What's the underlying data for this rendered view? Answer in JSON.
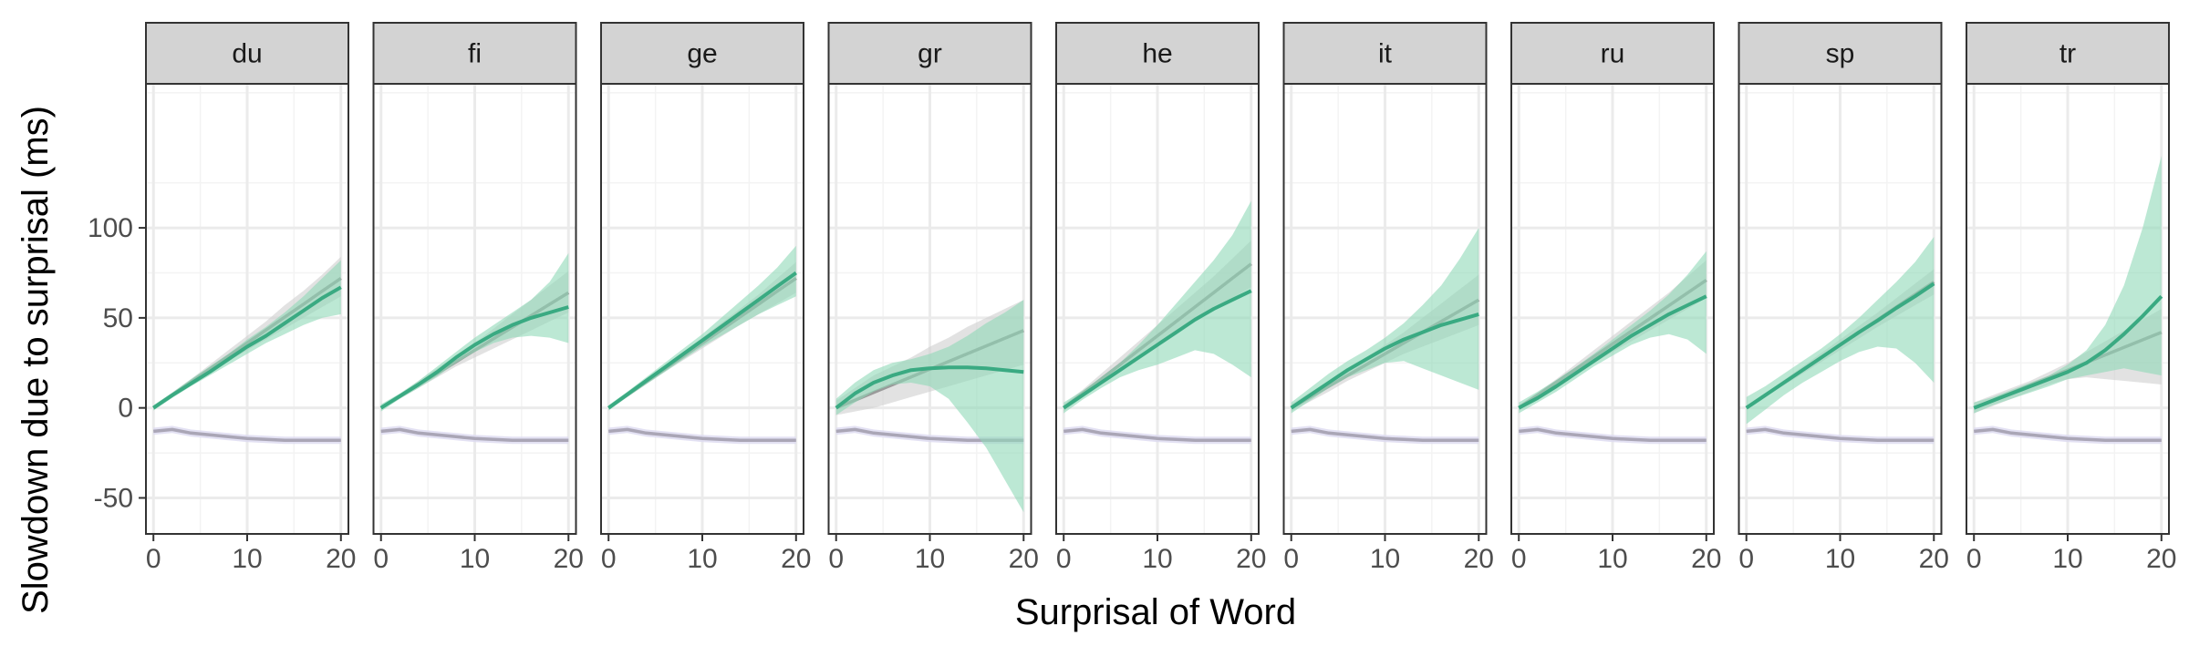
{
  "chart_data": {
    "type": "line",
    "xlabel": "Surprisal of Word",
    "ylabel": "Slowdown due to surprisal (ms)",
    "xlim": [
      -0.8,
      20.8
    ],
    "ylim": [
      -70,
      180
    ],
    "x_ticks": [
      0,
      10,
      20
    ],
    "y_ticks": [
      -50,
      0,
      50,
      100
    ],
    "y_tick_labels": [
      "-50",
      "0",
      "50",
      "100"
    ],
    "grid": true,
    "legend": "none",
    "colors": {
      "green_line": "#3aaa82",
      "green_band": "#8fd9b8",
      "gray_line": "#9a9a9a",
      "gray_band": "#cfcfcf",
      "baseline_line": "#aaa6b6",
      "baseline_band": "#dcdaf0",
      "strip_bg": "#d3d3d3",
      "grid": "#ebebeb"
    },
    "x": [
      0,
      2,
      4,
      6,
      8,
      10,
      12,
      14,
      16,
      18,
      20
    ],
    "baseline": {
      "values": [
        -13,
        -12,
        -14,
        -15,
        -16,
        -17,
        -17.5,
        -18,
        -18,
        -18,
        -18
      ],
      "band": 2
    },
    "panels": [
      {
        "label": "du",
        "gray": [
          0,
          7.2,
          14.4,
          21.6,
          28.8,
          36,
          43.2,
          50.4,
          57.6,
          64.8,
          72
        ],
        "gray_band": [
          [
            -1,
            1
          ],
          [
            6,
            8.5
          ],
          [
            13,
            16
          ],
          [
            19.5,
            24
          ],
          [
            26,
            32
          ],
          [
            32,
            40
          ],
          [
            38,
            48
          ],
          [
            44,
            57
          ],
          [
            50,
            65
          ],
          [
            56,
            74
          ],
          [
            62,
            84
          ]
        ],
        "green": [
          0,
          7,
          13.5,
          20,
          27,
          34,
          40,
          47,
          54,
          61,
          67
        ],
        "green_band": [
          [
            -1.5,
            1.5
          ],
          [
            5.5,
            8.5
          ],
          [
            12,
            16
          ],
          [
            18,
            23
          ],
          [
            24,
            30
          ],
          [
            30,
            38
          ],
          [
            36,
            45
          ],
          [
            41,
            53
          ],
          [
            46,
            62
          ],
          [
            50,
            72
          ],
          [
            52,
            82
          ]
        ]
      },
      {
        "label": "fi",
        "gray": [
          0,
          6.4,
          12.8,
          19.2,
          25.6,
          32,
          38.4,
          44.8,
          51.2,
          57.6,
          64
        ],
        "gray_band": [
          [
            -1,
            1
          ],
          [
            5,
            7.5
          ],
          [
            11,
            15
          ],
          [
            17,
            22
          ],
          [
            23,
            29
          ],
          [
            28,
            36
          ],
          [
            33,
            44
          ],
          [
            38,
            52
          ],
          [
            43,
            60
          ],
          [
            48,
            68
          ],
          [
            53,
            76
          ]
        ],
        "green": [
          0,
          6.5,
          13,
          20,
          28,
          35,
          41,
          46,
          50,
          53,
          56
        ],
        "green_band": [
          [
            -2,
            2
          ],
          [
            5,
            8
          ],
          [
            11,
            15
          ],
          [
            17.5,
            23
          ],
          [
            25,
            31
          ],
          [
            31,
            39
          ],
          [
            36,
            46
          ],
          [
            39,
            53
          ],
          [
            40,
            60
          ],
          [
            39,
            70
          ],
          [
            36,
            86
          ]
        ]
      },
      {
        "label": "ge",
        "gray": [
          0,
          7.2,
          14.4,
          21.6,
          28.8,
          36,
          43.2,
          50.4,
          57.6,
          64.8,
          72
        ],
        "gray_band": [
          [
            -1,
            1
          ],
          [
            6,
            8.5
          ],
          [
            13,
            16
          ],
          [
            20,
            23.5
          ],
          [
            26.5,
            31
          ],
          [
            33,
            39
          ],
          [
            39.5,
            47
          ],
          [
            46,
            55
          ],
          [
            52,
            63
          ],
          [
            58,
            72
          ],
          [
            64,
            81
          ]
        ],
        "green": [
          0,
          7.5,
          15,
          22.5,
          30,
          37.5,
          45,
          52.5,
          60,
          67.5,
          75
        ],
        "green_band": [
          [
            -1.5,
            1.5
          ],
          [
            6,
            9
          ],
          [
            13,
            17
          ],
          [
            20,
            25
          ],
          [
            27,
            33
          ],
          [
            34,
            41
          ],
          [
            40,
            50
          ],
          [
            46,
            59
          ],
          [
            52,
            68
          ],
          [
            57,
            78
          ],
          [
            62,
            90
          ]
        ]
      },
      {
        "label": "gr",
        "gray": [
          0,
          4.3,
          8.6,
          12.9,
          17.2,
          21.5,
          25.8,
          30.1,
          34.4,
          38.7,
          43
        ],
        "gray_band": [
          [
            -4,
            4
          ],
          [
            -2,
            11
          ],
          [
            0,
            18
          ],
          [
            3,
            23
          ],
          [
            6,
            28
          ],
          [
            9,
            34
          ],
          [
            12,
            39
          ],
          [
            15,
            45
          ],
          [
            18,
            50
          ],
          [
            21,
            55
          ],
          [
            24,
            60
          ]
        ],
        "green": [
          0,
          8,
          14,
          18,
          21,
          22,
          22.5,
          22.5,
          22,
          21,
          20
        ],
        "green_band": [
          [
            -4,
            5
          ],
          [
            3,
            14
          ],
          [
            9,
            21
          ],
          [
            13,
            25
          ],
          [
            14,
            27
          ],
          [
            12,
            30
          ],
          [
            5,
            34
          ],
          [
            -8,
            40
          ],
          [
            -22,
            47
          ],
          [
            -40,
            53
          ],
          [
            -58,
            60
          ]
        ]
      },
      {
        "label": "he",
        "gray": [
          0,
          8,
          16,
          24,
          32,
          40,
          48,
          56,
          64,
          72,
          80
        ],
        "gray_band": [
          [
            -2,
            2
          ],
          [
            6,
            10
          ],
          [
            13,
            19
          ],
          [
            20,
            28
          ],
          [
            27,
            37
          ],
          [
            34,
            46
          ],
          [
            41,
            55
          ],
          [
            48,
            64
          ],
          [
            55,
            73
          ],
          [
            61,
            83
          ],
          [
            67,
            93
          ]
        ],
        "green": [
          0,
          7,
          14,
          21,
          28,
          35,
          42,
          49,
          55,
          60,
          65
        ],
        "green_band": [
          [
            -3,
            3
          ],
          [
            4.5,
            9.5
          ],
          [
            11,
            17
          ],
          [
            17,
            25
          ],
          [
            21,
            35
          ],
          [
            24,
            46
          ],
          [
            28,
            58
          ],
          [
            32,
            70
          ],
          [
            30,
            82
          ],
          [
            24,
            96
          ],
          [
            17,
            115
          ]
        ]
      },
      {
        "label": "it",
        "gray": [
          0,
          6,
          12,
          18,
          24,
          30,
          36,
          42,
          48,
          54,
          60
        ],
        "gray_band": [
          [
            -2,
            2
          ],
          [
            3.5,
            8.5
          ],
          [
            9,
            15
          ],
          [
            15,
            21
          ],
          [
            20,
            28
          ],
          [
            25,
            35
          ],
          [
            30,
            42
          ],
          [
            34,
            50
          ],
          [
            38,
            58
          ],
          [
            42,
            66
          ],
          [
            46,
            74
          ]
        ],
        "green": [
          0,
          7,
          14,
          21,
          27,
          33,
          38,
          42,
          46,
          49,
          52
        ],
        "green_band": [
          [
            -3,
            3
          ],
          [
            4,
            11
          ],
          [
            11,
            19
          ],
          [
            17,
            26
          ],
          [
            21,
            32
          ],
          [
            25,
            39
          ],
          [
            26,
            47
          ],
          [
            22,
            57
          ],
          [
            18,
            68
          ],
          [
            14,
            83
          ],
          [
            10,
            100
          ]
        ]
      },
      {
        "label": "ru",
        "gray": [
          0,
          7.1,
          14.2,
          21.3,
          28.4,
          35.5,
          42.6,
          49.7,
          56.8,
          63.9,
          71
        ],
        "gray_band": [
          [
            -1.5,
            1.5
          ],
          [
            5.5,
            8.5
          ],
          [
            12,
            16
          ],
          [
            18.5,
            24
          ],
          [
            25,
            32
          ],
          [
            31,
            40
          ],
          [
            37,
            48
          ],
          [
            43,
            56
          ],
          [
            49,
            64
          ],
          [
            55,
            73
          ],
          [
            61,
            82
          ]
        ],
        "green": [
          0,
          5.5,
          12,
          19,
          26,
          33,
          40,
          46,
          52,
          57,
          62
        ],
        "green_band": [
          [
            -3,
            3
          ],
          [
            3,
            9
          ],
          [
            9,
            15.5
          ],
          [
            16,
            22.5
          ],
          [
            23,
            30
          ],
          [
            29,
            38
          ],
          [
            35,
            46
          ],
          [
            39,
            54
          ],
          [
            41,
            63
          ],
          [
            38,
            74
          ],
          [
            30,
            87
          ]
        ]
      },
      {
        "label": "sp",
        "gray": [
          0,
          7,
          14,
          21,
          28,
          35,
          42,
          49,
          56,
          63,
          70
        ],
        "gray_band": [
          [
            -1,
            1
          ],
          [
            6,
            8
          ],
          [
            12.5,
            15.5
          ],
          [
            19,
            23
          ],
          [
            25.5,
            30.5
          ],
          [
            32,
            38
          ],
          [
            38.5,
            45.5
          ],
          [
            45,
            53
          ],
          [
            51,
            61
          ],
          [
            57,
            69
          ],
          [
            63,
            77
          ]
        ],
        "green": [
          0,
          7,
          14,
          21,
          28,
          35,
          42,
          48.5,
          55.5,
          62,
          69
        ],
        "green_band": [
          [
            -9,
            6
          ],
          [
            -1,
            12
          ],
          [
            7,
            19
          ],
          [
            14,
            26
          ],
          [
            20,
            33
          ],
          [
            26,
            41
          ],
          [
            31,
            50
          ],
          [
            34,
            60
          ],
          [
            33,
            70
          ],
          [
            25,
            81
          ],
          [
            14,
            95
          ]
        ]
      },
      {
        "label": "tr",
        "gray": [
          0,
          4.2,
          8.4,
          12.6,
          16.8,
          21,
          25.2,
          29.4,
          33.6,
          37.8,
          42
        ],
        "gray_band": [
          [
            -3,
            3
          ],
          [
            1,
            7
          ],
          [
            5,
            11
          ],
          [
            9,
            15
          ],
          [
            13,
            20
          ],
          [
            16,
            25
          ],
          [
            17,
            31
          ],
          [
            16,
            37
          ],
          [
            15,
            43
          ],
          [
            14,
            49
          ],
          [
            13,
            55
          ]
        ],
        "green": [
          0,
          4,
          8,
          12,
          16,
          20,
          25,
          32,
          41,
          51,
          62
        ],
        "green_band": [
          [
            -3,
            3
          ],
          [
            1.5,
            6
          ],
          [
            5,
            10
          ],
          [
            8.5,
            14
          ],
          [
            12,
            18
          ],
          [
            16,
            24
          ],
          [
            18,
            32
          ],
          [
            20,
            46
          ],
          [
            22,
            68
          ],
          [
            20,
            100
          ],
          [
            18,
            140
          ]
        ]
      }
    ]
  }
}
